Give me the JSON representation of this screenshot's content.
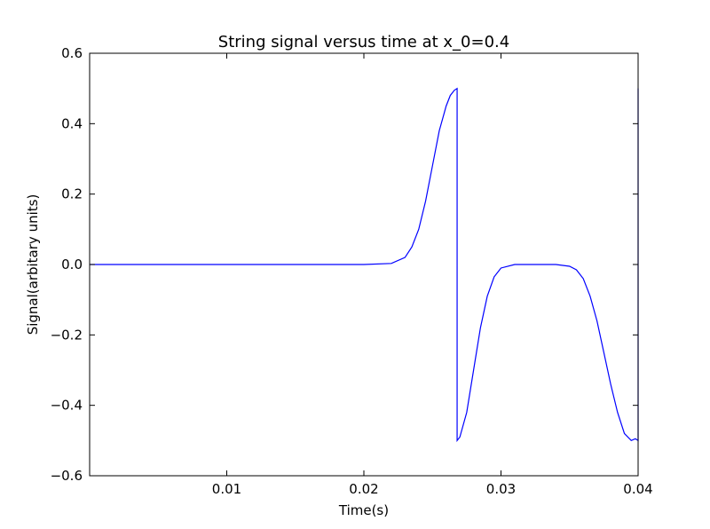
{
  "chart_data": {
    "type": "line",
    "title": "String signal versus time at x_0=0.4",
    "xlabel": "Time(s)",
    "ylabel": "Signal(arbitary units)",
    "xlim": [
      0.0,
      0.04
    ],
    "ylim": [
      -0.6,
      0.6
    ],
    "xticks": [
      {
        "value": 0.01,
        "label": "0.01"
      },
      {
        "value": 0.02,
        "label": "0.02"
      },
      {
        "value": 0.03,
        "label": "0.03"
      },
      {
        "value": 0.04,
        "label": "0.04"
      }
    ],
    "yticks": [
      {
        "value": 0.6,
        "label": "0.6"
      },
      {
        "value": 0.4,
        "label": "0.4"
      },
      {
        "value": 0.2,
        "label": "0.2"
      },
      {
        "value": 0.0,
        "label": "0.0"
      },
      {
        "value": -0.2,
        "label": "−0.2"
      },
      {
        "value": -0.4,
        "label": "−0.4"
      },
      {
        "value": -0.6,
        "label": "−0.6"
      }
    ],
    "grid": false,
    "series": [
      {
        "color": "#0000ff",
        "x": [
          0.0,
          0.02,
          0.022,
          0.023,
          0.0235,
          0.024,
          0.0245,
          0.025,
          0.0255,
          0.026,
          0.0263,
          0.0266,
          0.0268,
          0.0268,
          0.027,
          0.0275,
          0.028,
          0.0285,
          0.029,
          0.0295,
          0.03,
          0.031,
          0.034,
          0.035,
          0.0355,
          0.036,
          0.0365,
          0.037,
          0.0375,
          0.038,
          0.0385,
          0.039,
          0.0395,
          0.0398,
          0.04,
          0.04
        ],
        "y": [
          0.0,
          0.0,
          0.003,
          0.02,
          0.05,
          0.1,
          0.18,
          0.28,
          0.38,
          0.45,
          0.48,
          0.495,
          0.5,
          -0.5,
          -0.49,
          -0.42,
          -0.3,
          -0.18,
          -0.09,
          -0.035,
          -0.01,
          0.0,
          0.0,
          -0.005,
          -0.015,
          -0.04,
          -0.09,
          -0.16,
          -0.25,
          -0.34,
          -0.42,
          -0.48,
          -0.5,
          -0.495,
          -0.5,
          0.5
        ]
      }
    ]
  }
}
